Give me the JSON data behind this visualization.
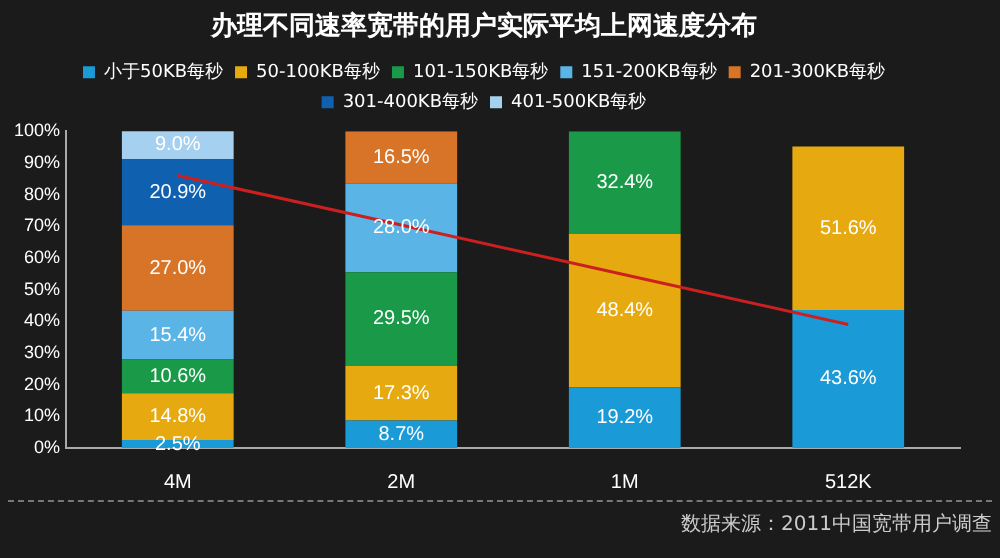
{
  "chart_data": {
    "type": "bar",
    "stacked": true,
    "title": "办理不同速率宽带的用户实际平均上网速度分布",
    "categories": [
      "4M",
      "2M",
      "1M",
      "512K"
    ],
    "series": [
      {
        "name": "小于50KB每秒",
        "color": "#1a9ad6",
        "values": [
          2.5,
          8.7,
          19.2,
          43.6
        ],
        "value_labels": [
          "2.5%",
          "8.7%",
          "19.2%",
          "43.6%"
        ]
      },
      {
        "name": "50-100KB每秒",
        "color": "#e6a910",
        "values": [
          14.8,
          17.3,
          48.4,
          51.6
        ],
        "value_labels": [
          "14.8%",
          "17.3%",
          "48.4%",
          "51.6%"
        ]
      },
      {
        "name": "101-150KB每秒",
        "color": "#1a9a48",
        "values": [
          10.6,
          29.5,
          32.4,
          null
        ],
        "value_labels": [
          "10.6%",
          "29.5%",
          "32.4%",
          null
        ]
      },
      {
        "name": "151-200KB每秒",
        "color": "#5ab4e6",
        "values": [
          15.4,
          28.0,
          null,
          null
        ],
        "value_labels": [
          "15.4%",
          "28.0%",
          null,
          null
        ]
      },
      {
        "name": "201-300KB每秒",
        "color": "#d87428",
        "values": [
          27.0,
          16.5,
          null,
          null
        ],
        "value_labels": [
          "27.0%",
          "16.5%",
          null,
          null
        ]
      },
      {
        "name": "301-400KB每秒",
        "color": "#1060b0",
        "values": [
          20.9,
          null,
          null,
          null
        ],
        "value_labels": [
          "20.9%",
          null,
          null,
          null
        ]
      },
      {
        "name": "401-500KB每秒",
        "color": "#a6d0ef",
        "values": [
          9.0,
          null,
          null,
          null
        ],
        "value_labels": [
          "9.0%",
          null,
          null,
          null
        ]
      },
      {
        "type": "line",
        "color": "#cc2020",
        "values": [
          86,
          70.4,
          54.7,
          39
        ]
      }
    ],
    "ylim": [
      0,
      100
    ],
    "yticks": [
      {
        "value": 0,
        "label": "0%"
      },
      {
        "value": 10,
        "label": "10%"
      },
      {
        "value": 20,
        "label": "20%"
      },
      {
        "value": 30,
        "label": "30%"
      },
      {
        "value": 40,
        "label": "40%"
      },
      {
        "value": 50,
        "label": "50%"
      },
      {
        "value": 60,
        "label": "60%"
      },
      {
        "value": 70,
        "label": "70%"
      },
      {
        "value": 80,
        "label": "80%"
      },
      {
        "value": 90,
        "label": "90%"
      },
      {
        "value": 100,
        "label": "100%"
      }
    ],
    "grid": false,
    "legend": "top",
    "marker": "none",
    "annotations": [
      "数据来源：2011中国宽带用户调查"
    ]
  }
}
